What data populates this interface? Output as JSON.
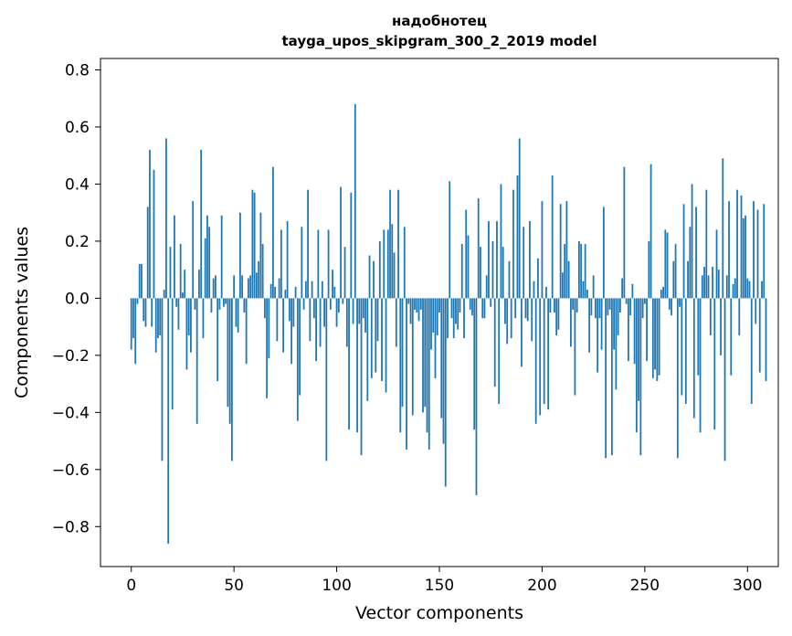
{
  "chart_data": {
    "type": "bar",
    "title": "надобнотец",
    "subtitle": "tayga_upos_skipgram_300_2_2019 model",
    "xlabel": "Vector components",
    "ylabel": "Components values",
    "xlim": [
      -15,
      315
    ],
    "ylim": [
      -0.94,
      0.84
    ],
    "xticks": [
      0,
      50,
      100,
      150,
      200,
      250,
      300
    ],
    "yticks": [
      -0.8,
      -0.6,
      -0.4,
      -0.2,
      0.0,
      0.2,
      0.4,
      0.6,
      0.8
    ],
    "ytick_labels": [
      "−0.8",
      "−0.6",
      "−0.4",
      "−0.2",
      "0.0",
      "0.2",
      "0.4",
      "0.6",
      "0.8"
    ],
    "xtick_labels": [
      "0",
      "50",
      "100",
      "150",
      "200",
      "250",
      "300"
    ],
    "bar_color": "#1f77b4",
    "grid": false,
    "values": [
      -0.18,
      -0.14,
      -0.23,
      -0.02,
      0.12,
      0.12,
      -0.08,
      -0.1,
      0.32,
      0.52,
      -0.1,
      0.45,
      -0.19,
      -0.14,
      -0.13,
      -0.57,
      0.03,
      0.56,
      -0.86,
      0.18,
      -0.39,
      0.29,
      -0.03,
      -0.11,
      0.19,
      0.02,
      0.1,
      -0.25,
      -0.13,
      -0.19,
      0.34,
      -0.04,
      -0.44,
      0.1,
      0.52,
      -0.14,
      0.21,
      0.29,
      0.25,
      -0.05,
      0.07,
      0.08,
      -0.29,
      -0.04,
      0.29,
      -0.03,
      -0.02,
      -0.38,
      -0.44,
      -0.57,
      0.08,
      -0.1,
      -0.12,
      0.3,
      0.08,
      -0.05,
      -0.23,
      0.07,
      0.08,
      0.38,
      0.37,
      0.09,
      0.13,
      0.3,
      0.19,
      -0.07,
      -0.35,
      -0.21,
      0.05,
      0.46,
      0.04,
      -0.15,
      0.07,
      0.24,
      -0.19,
      0.03,
      0.27,
      -0.08,
      -0.23,
      -0.1,
      0.04,
      -0.43,
      -0.34,
      0.25,
      -0.04,
      0.06,
      0.38,
      -0.15,
      0.06,
      -0.07,
      -0.22,
      0.24,
      -0.17,
      0.06,
      -0.1,
      -0.57,
      0.24,
      -0.04,
      0.1,
      0.04,
      -0.1,
      -0.05,
      0.39,
      -0.02,
      0.18,
      -0.17,
      -0.46,
      0.37,
      -0.09,
      0.68,
      -0.47,
      -0.09,
      -0.55,
      -0.07,
      -0.12,
      -0.36,
      0.15,
      -0.28,
      0.13,
      -0.26,
      -0.15,
      0.2,
      -0.29,
      0.24,
      -0.33,
      0.24,
      0.38,
      0.26,
      0.16,
      -0.17,
      0.38,
      -0.47,
      -0.38,
      0.25,
      -0.53,
      -0.02,
      -0.09,
      -0.41,
      -0.04,
      -0.05,
      -0.08,
      -0.04,
      -0.4,
      -0.38,
      -0.47,
      -0.53,
      -0.18,
      -0.12,
      -0.28,
      -0.13,
      -0.05,
      -0.42,
      -0.51,
      -0.66,
      -0.14,
      0.41,
      -0.07,
      -0.14,
      -0.09,
      -0.11,
      -0.05,
      0.19,
      -0.14,
      0.31,
      0.22,
      -0.04,
      -0.06,
      -0.46,
      -0.69,
      0.35,
      0.18,
      -0.07,
      -0.07,
      0.08,
      0.27,
      -0.03,
      0.2,
      -0.31,
      0.27,
      -0.37,
      0.4,
      0.18,
      -0.09,
      -0.16,
      0.13,
      -0.14,
      0.38,
      -0.07,
      0.43,
      0.56,
      -0.24,
      0.25,
      -0.07,
      -0.08,
      0.27,
      -0.15,
      0.06,
      -0.44,
      0.14,
      -0.41,
      0.34,
      -0.37,
      0.04,
      -0.39,
      -0.05,
      0.43,
      -0.05,
      -0.13,
      -0.11,
      0.33,
      0.09,
      0.19,
      0.34,
      0.13,
      -0.17,
      -0.04,
      -0.34,
      -0.05,
      0.2,
      0.19,
      0.06,
      0.19,
      0.03,
      -0.19,
      -0.06,
      0.08,
      -0.07,
      -0.26,
      -0.07,
      -0.18,
      0.32,
      -0.56,
      -0.06,
      -0.04,
      -0.55,
      -0.18,
      -0.32,
      -0.13,
      -0.05,
      0.07,
      0.46,
      -0.02,
      -0.22,
      -0.06,
      0.05,
      -0.23,
      -0.47,
      -0.36,
      -0.55,
      -0.07,
      -0.02,
      -0.22,
      0.2,
      0.47,
      -0.28,
      -0.25,
      -0.29,
      -0.27,
      0.03,
      0.04,
      0.24,
      0.23,
      -0.04,
      -0.06,
      0.13,
      0.19,
      -0.56,
      -0.03,
      -0.34,
      0.33,
      -0.37,
      0.13,
      0.25,
      0.4,
      -0.42,
      0.32,
      -0.27,
      -0.47,
      0.08,
      0.11,
      0.38,
      0.08,
      -0.13,
      0.11,
      -0.46,
      0.24,
      0.1,
      -0.2,
      0.49,
      -0.57,
      0.08,
      0.34,
      -0.27,
      0.05,
      0.07,
      0.38,
      -0.13,
      0.36,
      0.28,
      0.29,
      0.07,
      0.06,
      -0.37,
      0.34,
      -0.09,
      0.31,
      -0.26,
      0.06,
      0.33,
      -0.29
    ]
  }
}
